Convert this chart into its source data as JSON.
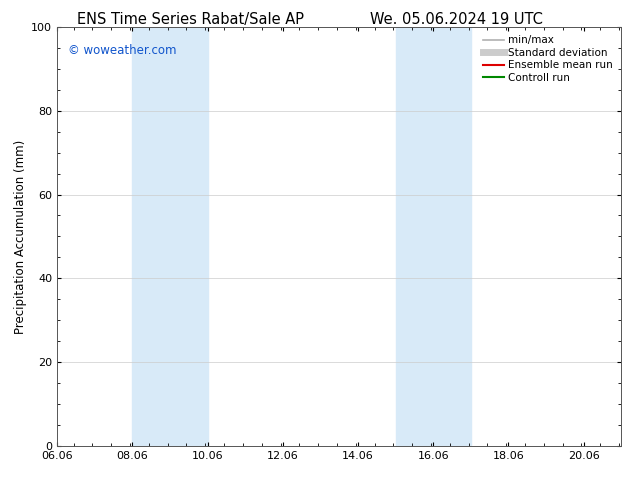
{
  "title_left": "ENS Time Series Rabat/Sale AP",
  "title_right": "We. 05.06.2024 19 UTC",
  "ylabel": "Precipitation Accumulation (mm)",
  "ylim": [
    0,
    100
  ],
  "yticks": [
    0,
    20,
    40,
    60,
    80,
    100
  ],
  "xlim_start": 6.06,
  "xlim_end": 21.06,
  "xtick_labels": [
    "06.06",
    "08.06",
    "10.06",
    "12.06",
    "14.06",
    "16.06",
    "18.06",
    "20.06"
  ],
  "xtick_positions": [
    6.06,
    8.06,
    10.06,
    12.06,
    14.06,
    16.06,
    18.06,
    20.06
  ],
  "shaded_regions": [
    {
      "x_start": 8.06,
      "x_end": 10.06,
      "color": "#d8eaf8"
    },
    {
      "x_start": 15.06,
      "x_end": 17.06,
      "color": "#d8eaf8"
    }
  ],
  "watermark_text": "© woweather.com",
  "watermark_color": "#1155cc",
  "legend_items": [
    {
      "label": "min/max",
      "color": "#b0b0b0",
      "lw": 1.2
    },
    {
      "label": "Standard deviation",
      "color": "#cccccc",
      "lw": 5
    },
    {
      "label": "Ensemble mean run",
      "color": "#dd0000",
      "lw": 1.5
    },
    {
      "label": "Controll run",
      "color": "#008800",
      "lw": 1.5
    }
  ],
  "background_color": "#ffffff",
  "grid_color": "#cccccc",
  "title_fontsize": 10.5,
  "ylabel_fontsize": 8.5,
  "tick_fontsize": 8,
  "legend_fontsize": 7.5,
  "watermark_fontsize": 8.5
}
